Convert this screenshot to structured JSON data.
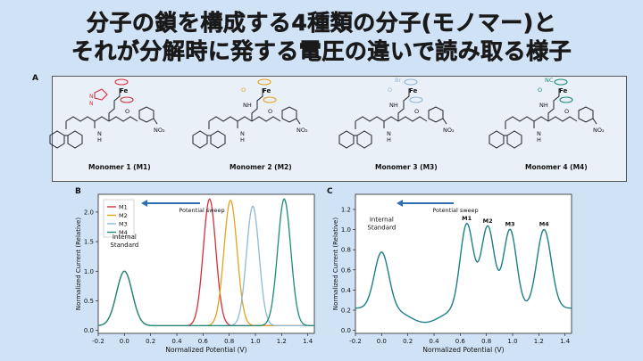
{
  "title": {
    "line1": "分子の鎖を構成する4種類の分子(モノマー)と",
    "line2": "それが分解時に発する電圧の違いで読み取る様子"
  },
  "panel_a": {
    "label": "A",
    "monomers": [
      {
        "name": "Monomer 1 (M1)",
        "color": "#d62e3d",
        "substituent": "Fe"
      },
      {
        "name": "Monomer 2 (M2)",
        "color": "#e5a21d",
        "substituent": "Fe"
      },
      {
        "name": "Monomer 3 (M3)",
        "color": "#8fb9d8",
        "substituent": "Br"
      },
      {
        "name": "Monomer 4 (M4)",
        "color": "#1e8a7a",
        "substituent": "NC"
      }
    ],
    "atoms": {
      "no2": "NO₂",
      "n": "N",
      "h": "H",
      "o": "O",
      "nh": "NH",
      "fe": "Fe"
    }
  },
  "chart_data": [
    {
      "panel": "B",
      "type": "line",
      "xlabel": "Normalized Potential (V)",
      "ylabel": "Normalized Current (Relative)",
      "xlim": [
        -0.2,
        1.45
      ],
      "ylim": [
        -0.05,
        2.3
      ],
      "xticks": [
        -0.2,
        0.0,
        0.2,
        0.4,
        0.6,
        0.8,
        1.0,
        1.2,
        1.4
      ],
      "yticks": [
        0.0,
        0.5,
        1.0,
        1.5,
        2.0
      ],
      "annotations": {
        "standard": "Internal Standard",
        "sweep": "Potential sweep"
      },
      "legend": "top-left",
      "baseline": 0.08,
      "standard_peak": {
        "x": 0.0,
        "height": 1.0,
        "width": 0.06
      },
      "series": [
        {
          "name": "M1",
          "color": "#d62e3d",
          "peak_x": 0.65,
          "peak_height": 2.22,
          "width": 0.048
        },
        {
          "name": "M2",
          "color": "#e5a21d",
          "peak_x": 0.81,
          "peak_height": 2.2,
          "width": 0.05
        },
        {
          "name": "M3",
          "color": "#8fb9d8",
          "peak_x": 0.98,
          "peak_height": 2.1,
          "width": 0.048
        },
        {
          "name": "M4",
          "color": "#1e8a7a",
          "peak_x": 1.22,
          "peak_height": 2.22,
          "width": 0.05
        }
      ]
    },
    {
      "panel": "C",
      "type": "line",
      "xlabel": "Normalized Potential (V)",
      "ylabel": "Normalized Current (Relative)",
      "xlim": [
        -0.2,
        1.45
      ],
      "ylim": [
        -0.03,
        1.35
      ],
      "xticks": [
        -0.2,
        0.0,
        0.2,
        0.4,
        0.6,
        0.8,
        1.0,
        1.2,
        1.4
      ],
      "yticks": [
        0.0,
        0.2,
        0.4,
        0.6,
        0.8,
        1.0,
        1.2
      ],
      "annotations": {
        "standard": "Internal Standard",
        "sweep": "Potential sweep"
      },
      "series_color": "#1e7f86",
      "baseline": 0.22,
      "peaks": [
        {
          "label": "",
          "x": 0.0,
          "height": 0.78,
          "width": 0.055
        },
        {
          "label": "M1",
          "x": 0.65,
          "height": 1.06,
          "width": 0.05
        },
        {
          "label": "M2",
          "x": 0.81,
          "height": 1.03,
          "width": 0.05
        },
        {
          "label": "M3",
          "x": 0.98,
          "height": 1.0,
          "width": 0.05
        },
        {
          "label": "M4",
          "x": 1.24,
          "height": 1.0,
          "width": 0.055
        }
      ]
    }
  ]
}
